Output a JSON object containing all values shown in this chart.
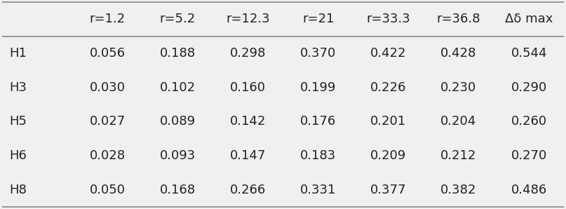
{
  "columns": [
    "",
    "r=1.2",
    "r=5.2",
    "r=12.3",
    "r=21",
    "r=33.3",
    "r=36.8",
    "Δδ max"
  ],
  "rows": [
    [
      "H1",
      "0.056",
      "0.188",
      "0.298",
      "0.370",
      "0.422",
      "0.428",
      "0.544"
    ],
    [
      "H3",
      "0.030",
      "0.102",
      "0.160",
      "0.199",
      "0.226",
      "0.230",
      "0.290"
    ],
    [
      "H5",
      "0.027",
      "0.089",
      "0.142",
      "0.176",
      "0.201",
      "0.204",
      "0.260"
    ],
    [
      "H6",
      "0.028",
      "0.093",
      "0.147",
      "0.183",
      "0.209",
      "0.212",
      "0.270"
    ],
    [
      "H8",
      "0.050",
      "0.168",
      "0.266",
      "0.331",
      "0.377",
      "0.382",
      "0.486"
    ]
  ],
  "background_color": "#f0f0f0",
  "table_bg": "#ffffff",
  "header_line_color": "#888888",
  "text_color": "#222222",
  "font_size": 13,
  "header_font_size": 13
}
